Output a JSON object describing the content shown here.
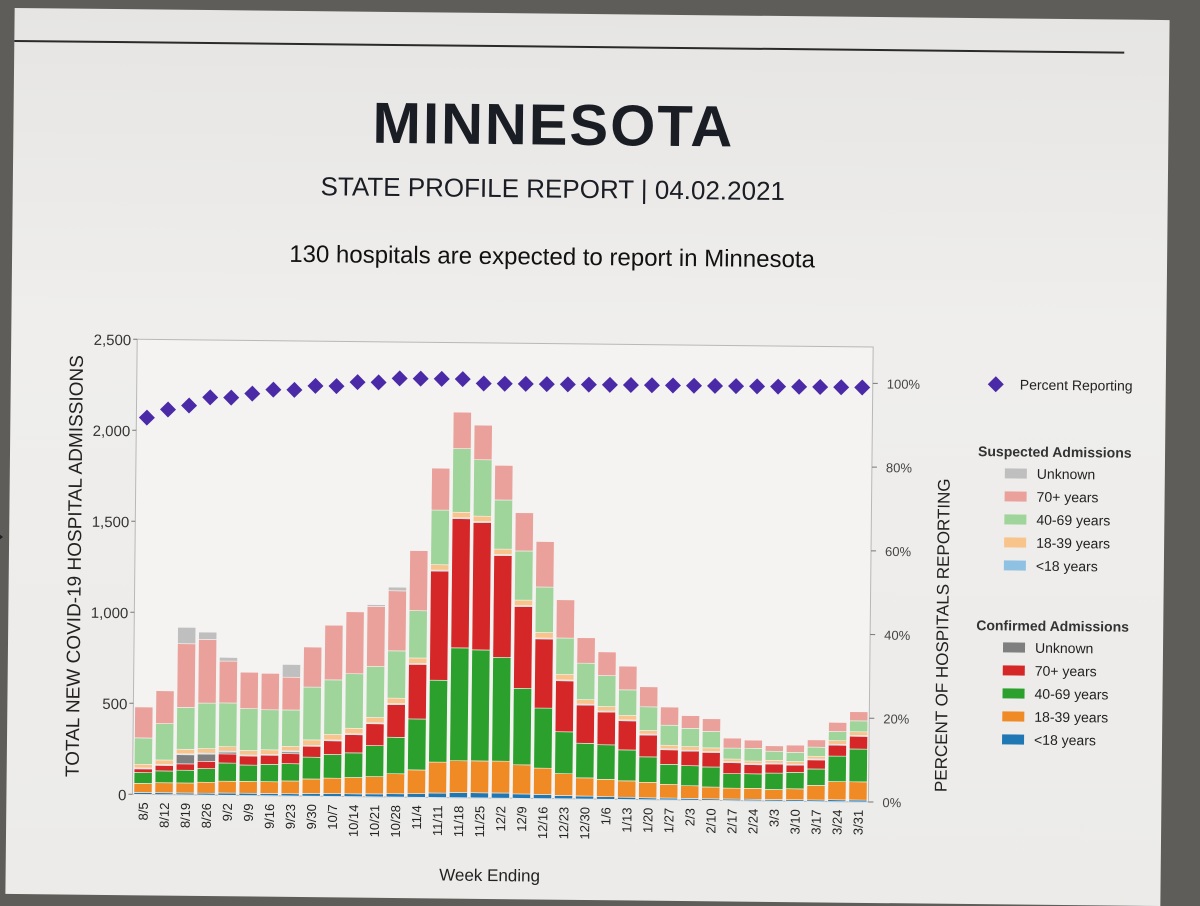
{
  "header": {
    "title": "MINNESOTA",
    "subtitle": "STATE PROFILE REPORT | 04.02.2021",
    "note": "130 hospitals are expected to report in Minnesota"
  },
  "chart_data": {
    "type": "bar",
    "stacked": true,
    "xlabel": "Week Ending",
    "ylabel": "TOTAL NEW COVID-19 HOSPITAL ADMISSIONS",
    "y2label": "PERCENT OF HOSPITALS REPORTING",
    "ylim": [
      0,
      2500
    ],
    "y_ticks": [
      "0",
      "500",
      "1,000",
      "1,500",
      "2,000",
      "2,500"
    ],
    "y2lim": [
      0,
      100
    ],
    "y2_ticks": [
      "0%",
      "20%",
      "40%",
      "60%",
      "80%",
      "100%"
    ],
    "categories": [
      "8/5",
      "8/12",
      "8/19",
      "8/26",
      "9/2",
      "9/9",
      "9/16",
      "9/23",
      "9/30",
      "10/7",
      "10/14",
      "10/21",
      "10/28",
      "11/4",
      "11/11",
      "11/18",
      "11/25",
      "12/2",
      "12/9",
      "12/16",
      "12/23",
      "12/30",
      "1/6",
      "1/13",
      "1/20",
      "1/27",
      "2/3",
      "2/10",
      "2/17",
      "2/24",
      "3/3",
      "3/10",
      "3/17",
      "3/24",
      "3/31"
    ],
    "colors": {
      "confirmed": {
        "under18": "#1f77b4",
        "age18_39": "#f08a24",
        "age40_69": "#2ca02c",
        "age70": "#d62728",
        "unknown": "#7f7f7f"
      },
      "suspected": {
        "under18": "#8fc1e3",
        "age18_39": "#f9c48c",
        "age40_69": "#9fd49a",
        "age70": "#eba19b",
        "unknown": "#bfbfbf"
      },
      "percent": "#4b2aa8"
    },
    "series": [
      {
        "group": "Confirmed Admissions",
        "name": "<18 years",
        "color_key": "confirmed.under18",
        "values": [
          10,
          10,
          10,
          10,
          12,
          12,
          12,
          12,
          14,
          15,
          15,
          16,
          18,
          20,
          24,
          28,
          28,
          28,
          24,
          22,
          18,
          16,
          14,
          12,
          10,
          10,
          9,
          8,
          8,
          8,
          8,
          8,
          8,
          10,
          10
        ]
      },
      {
        "group": "Confirmed Admissions",
        "name": "18-39 years",
        "color_key": "confirmed.age18_39",
        "values": [
          50,
          55,
          55,
          60,
          65,
          65,
          65,
          70,
          80,
          85,
          90,
          95,
          110,
          130,
          170,
          175,
          175,
          175,
          160,
          145,
          120,
          100,
          95,
          90,
          85,
          75,
          70,
          65,
          60,
          60,
          55,
          60,
          80,
          100,
          100
        ]
      },
      {
        "group": "Confirmed Admissions",
        "name": "40-69 years",
        "color_key": "confirmed.age40_69",
        "values": [
          60,
          65,
          70,
          75,
          100,
          90,
          95,
          95,
          120,
          130,
          135,
          170,
          200,
          280,
          450,
          620,
          610,
          570,
          420,
          330,
          230,
          190,
          190,
          170,
          140,
          110,
          110,
          110,
          80,
          80,
          90,
          90,
          90,
          140,
          180
        ]
      },
      {
        "group": "Confirmed Admissions",
        "name": "70+ years",
        "color_key": "confirmed.age70",
        "values": [
          20,
          30,
          35,
          40,
          50,
          50,
          50,
          55,
          60,
          75,
          100,
          120,
          180,
          300,
          600,
          710,
          700,
          560,
          450,
          380,
          280,
          210,
          180,
          160,
          120,
          80,
          80,
          80,
          60,
          50,
          50,
          40,
          50,
          60,
          70
        ]
      },
      {
        "group": "Confirmed Admissions",
        "name": "Unknown",
        "color_key": "confirmed.unknown",
        "values": [
          0,
          0,
          50,
          40,
          10,
          0,
          0,
          10,
          0,
          0,
          0,
          0,
          0,
          0,
          0,
          0,
          0,
          0,
          0,
          0,
          0,
          0,
          0,
          0,
          0,
          0,
          0,
          0,
          0,
          0,
          0,
          0,
          0,
          0,
          0
        ]
      },
      {
        "group": "Suspected Admissions",
        "name": "<18 years",
        "color_key": "suspected.under18",
        "values": [
          5,
          5,
          5,
          5,
          5,
          5,
          5,
          5,
          5,
          5,
          5,
          5,
          5,
          5,
          5,
          5,
          5,
          5,
          5,
          5,
          5,
          5,
          5,
          5,
          5,
          5,
          5,
          5,
          5,
          5,
          5,
          5,
          5,
          5,
          5
        ]
      },
      {
        "group": "Suspected Admissions",
        "name": "18-39 years",
        "color_key": "suspected.age18_39",
        "values": [
          20,
          25,
          25,
          25,
          25,
          25,
          25,
          25,
          30,
          30,
          30,
          30,
          30,
          30,
          30,
          30,
          30,
          30,
          30,
          30,
          30,
          25,
          25,
          25,
          20,
          20,
          20,
          20,
          15,
          15,
          15,
          15,
          15,
          20,
          20
        ]
      },
      {
        "group": "Suspected Admissions",
        "name": "40-69 years",
        "color_key": "suspected.age40_69",
        "values": [
          145,
          200,
          230,
          250,
          240,
          230,
          220,
          200,
          290,
          300,
          300,
          280,
          260,
          260,
          300,
          350,
          310,
          270,
          270,
          250,
          200,
          200,
          170,
          140,
          130,
          110,
          100,
          90,
          60,
          70,
          50,
          50,
          50,
          50,
          60
        ]
      },
      {
        "group": "Suspected Admissions",
        "name": "70+ years",
        "color_key": "suspected.age70",
        "values": [
          170,
          180,
          350,
          350,
          230,
          200,
          200,
          180,
          220,
          300,
          340,
          330,
          330,
          330,
          230,
          200,
          190,
          190,
          210,
          250,
          210,
          140,
          130,
          130,
          110,
          100,
          70,
          70,
          55,
          45,
          30,
          40,
          40,
          50,
          50
        ]
      },
      {
        "group": "Suspected Admissions",
        "name": "Unknown",
        "color_key": "suspected.unknown",
        "values": [
          0,
          0,
          90,
          40,
          20,
          0,
          0,
          70,
          0,
          0,
          0,
          10,
          20,
          0,
          0,
          0,
          0,
          0,
          0,
          0,
          0,
          0,
          0,
          0,
          0,
          0,
          0,
          0,
          0,
          0,
          0,
          0,
          0,
          0,
          0
        ]
      }
    ],
    "percent_reporting": {
      "name": "Percent Reporting",
      "values": [
        90,
        92,
        93,
        95,
        95,
        96,
        97,
        97,
        98,
        98,
        99,
        99,
        100,
        100,
        100,
        100,
        99,
        99,
        99,
        99,
        99,
        99,
        99,
        99,
        99,
        99,
        99,
        99,
        99,
        99,
        99,
        99,
        99,
        99,
        99
      ]
    },
    "legend": {
      "position": "right",
      "percent_label": "Percent Reporting",
      "suspected_title": "Suspected Admissions",
      "confirmed_title": "Confirmed Admissions",
      "entries": [
        "Unknown",
        "70+ years",
        "40-69 years",
        "18-39 years",
        "<18 years"
      ]
    }
  }
}
